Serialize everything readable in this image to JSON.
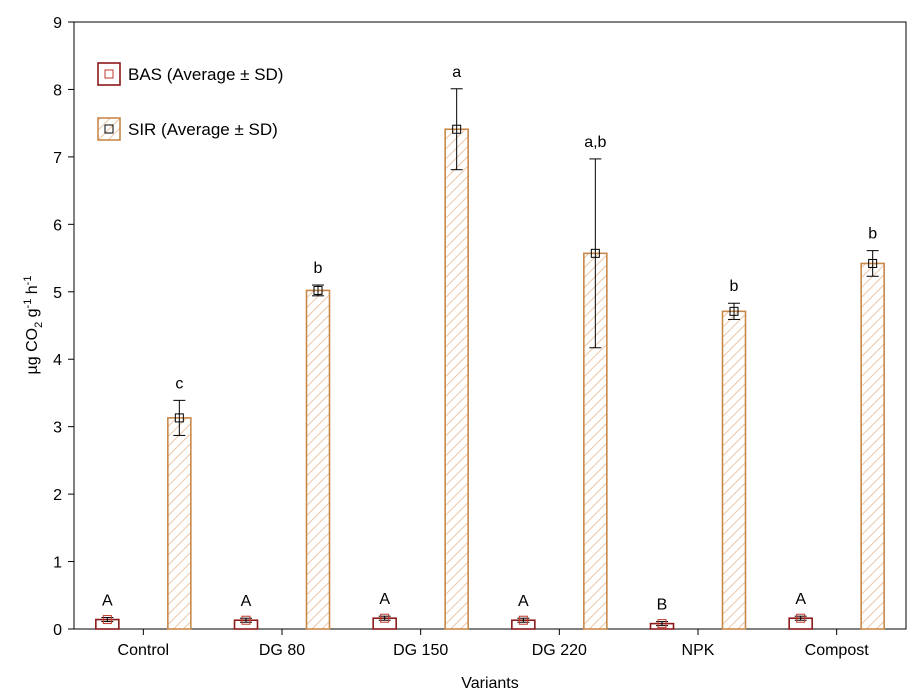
{
  "chart_data": {
    "type": "bar",
    "categories": [
      "Control",
      "DG 80",
      "DG 150",
      "DG 220",
      "NPK",
      "Compost"
    ],
    "series": [
      {
        "name": "BAS (Average ± SD)",
        "values": [
          0.14,
          0.13,
          0.16,
          0.13,
          0.08,
          0.16
        ],
        "sd": [
          0.03,
          0.03,
          0.03,
          0.03,
          0.03,
          0.03
        ],
        "letters": [
          "A",
          "A",
          "A",
          "A",
          "B",
          "A"
        ],
        "color": "#8b1a1a",
        "fill": "solid-white",
        "marker_color": "#c0392b"
      },
      {
        "name": "SIR (Average ± SD)",
        "values": [
          3.13,
          5.02,
          7.41,
          5.57,
          4.71,
          5.42
        ],
        "sd": [
          0.26,
          0.08,
          0.6,
          1.4,
          0.12,
          0.19
        ],
        "letters": [
          "c",
          "b",
          "a",
          "a,b",
          "b",
          "b"
        ],
        "color": "#c8884a",
        "fill": "diagonal-hatch",
        "marker_color": "#000000"
      }
    ],
    "y_ticks": [
      "0",
      "1",
      "2",
      "3",
      "4",
      "5",
      "6",
      "7",
      "8",
      "9"
    ],
    "ylim": [
      0,
      9
    ],
    "xlabel": "Variants",
    "ylabel": {
      "prefix": "µg CO",
      "sub": "2",
      "mid": " g",
      "sup1": "-1",
      "mid2": " h",
      "sup2": "-1"
    },
    "legend_position": "top-left",
    "grid": false
  }
}
